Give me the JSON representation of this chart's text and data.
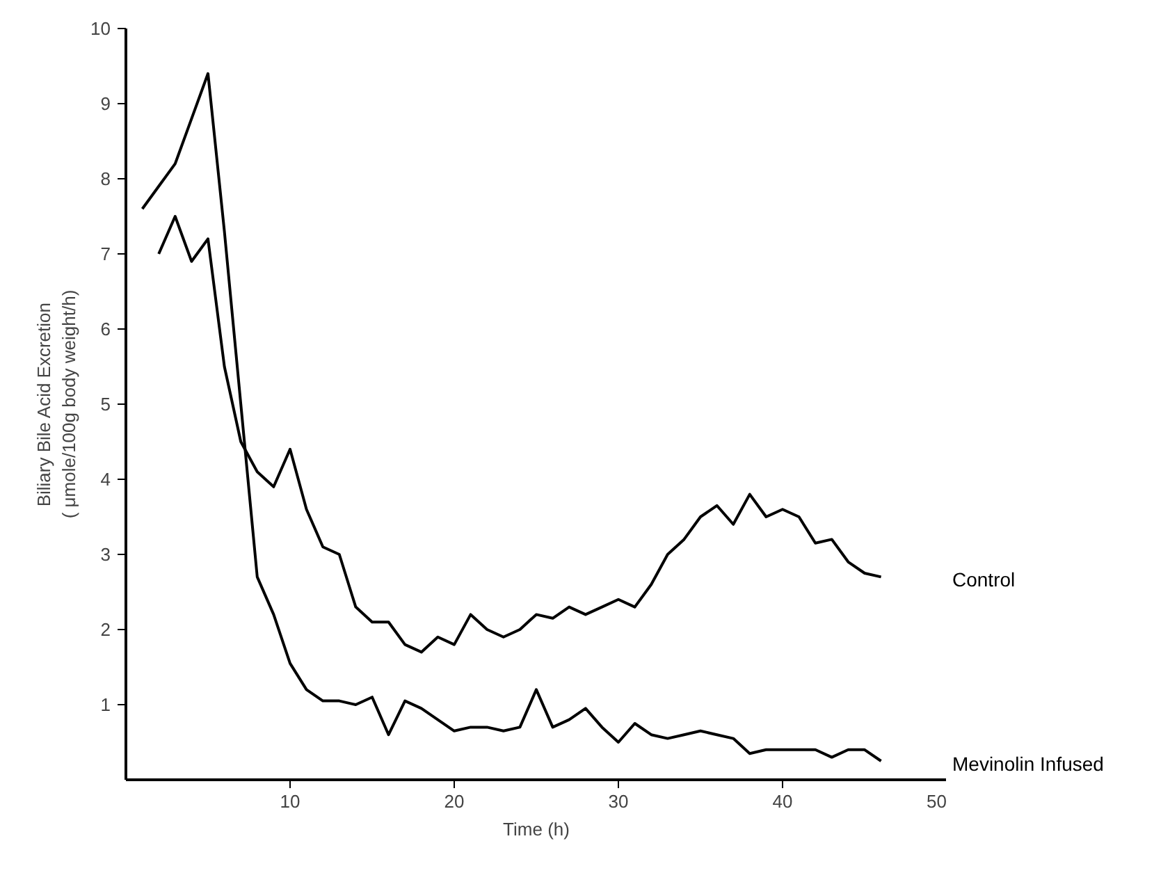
{
  "chart_data": {
    "type": "line",
    "xlabel": "Time (h)",
    "ylabel": "Biliary Bile Acid Excretion\n( μmole/100g body weight/h)",
    "xlim": [
      0,
      50
    ],
    "ylim": [
      0,
      10
    ],
    "xticks": [
      10,
      20,
      30,
      40,
      50
    ],
    "yticks": [
      1,
      2,
      3,
      4,
      5,
      6,
      7,
      8,
      9,
      10
    ],
    "grid": false,
    "legend": false,
    "marker": "none",
    "line_style": "solid",
    "series": [
      {
        "name": "Control",
        "color": "#000000",
        "x": [
          2,
          3,
          4,
          5,
          6,
          7,
          8,
          9,
          10,
          11,
          12,
          13,
          14,
          15,
          16,
          17,
          18,
          19,
          20,
          21,
          22,
          23,
          24,
          25,
          26,
          27,
          28,
          29,
          30,
          31,
          32,
          33,
          34,
          35,
          36,
          37,
          38,
          39,
          40,
          41,
          42,
          43,
          44,
          45,
          46
        ],
        "values": [
          7.0,
          7.5,
          6.9,
          7.2,
          5.5,
          4.5,
          4.1,
          3.9,
          4.4,
          3.6,
          3.1,
          3.0,
          2.3,
          2.1,
          2.1,
          1.8,
          1.7,
          1.9,
          1.8,
          2.2,
          2.0,
          1.9,
          2.0,
          2.2,
          2.15,
          2.3,
          2.2,
          2.3,
          2.4,
          2.3,
          2.6,
          3.0,
          3.2,
          3.5,
          3.65,
          3.4,
          3.8,
          3.5,
          3.6,
          3.5,
          3.15,
          3.2,
          2.9,
          2.75,
          2.7
        ]
      },
      {
        "name": "Mevinolin Infused",
        "color": "#000000",
        "x": [
          1,
          2,
          3,
          4,
          5,
          6,
          7,
          8,
          9,
          10,
          11,
          12,
          13,
          14,
          15,
          16,
          17,
          18,
          19,
          20,
          21,
          22,
          23,
          24,
          25,
          26,
          27,
          28,
          29,
          30,
          31,
          32,
          33,
          34,
          35,
          36,
          37,
          38,
          39,
          40,
          41,
          42,
          43,
          44,
          45,
          46
        ],
        "values": [
          7.6,
          7.9,
          8.2,
          8.8,
          9.4,
          7.3,
          5.0,
          2.7,
          2.2,
          1.55,
          1.2,
          1.05,
          1.05,
          1.0,
          1.1,
          0.6,
          1.05,
          0.95,
          0.8,
          0.65,
          0.7,
          0.7,
          0.65,
          0.7,
          1.2,
          0.7,
          0.8,
          0.95,
          0.7,
          0.5,
          0.75,
          0.6,
          0.55,
          0.6,
          0.65,
          0.6,
          0.55,
          0.35,
          0.4,
          0.4,
          0.4,
          0.4,
          0.3,
          0.4,
          0.4,
          0.25
        ]
      }
    ]
  }
}
